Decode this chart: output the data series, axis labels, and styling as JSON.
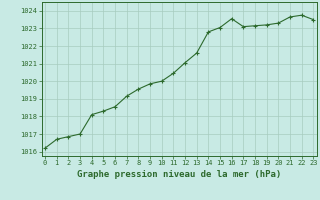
{
  "x": [
    0,
    1,
    2,
    3,
    4,
    5,
    6,
    7,
    8,
    9,
    10,
    11,
    12,
    13,
    14,
    15,
    16,
    17,
    18,
    19,
    20,
    21,
    22,
    23
  ],
  "y": [
    1016.2,
    1016.7,
    1016.85,
    1017.0,
    1018.1,
    1018.3,
    1018.55,
    1019.15,
    1019.55,
    1019.85,
    1020.0,
    1020.45,
    1021.05,
    1021.6,
    1022.8,
    1023.05,
    1023.55,
    1023.1,
    1023.15,
    1023.2,
    1023.3,
    1023.65,
    1023.75,
    1023.5
  ],
  "line_color": "#2d6a2d",
  "marker": "+",
  "marker_size": 3.5,
  "bg_color": "#c8eae4",
  "grid_color": "#a8ccbf",
  "text_color": "#2d6a2d",
  "xlabel": "Graphe pression niveau de la mer (hPa)",
  "xlabel_fontsize": 6.5,
  "ylim": [
    1015.75,
    1024.5
  ],
  "yticks": [
    1016,
    1017,
    1018,
    1019,
    1020,
    1021,
    1022,
    1023,
    1024
  ],
  "xticks": [
    0,
    1,
    2,
    3,
    4,
    5,
    6,
    7,
    8,
    9,
    10,
    11,
    12,
    13,
    14,
    15,
    16,
    17,
    18,
    19,
    20,
    21,
    22,
    23
  ],
  "tick_fontsize": 5.0,
  "linewidth": 0.8
}
